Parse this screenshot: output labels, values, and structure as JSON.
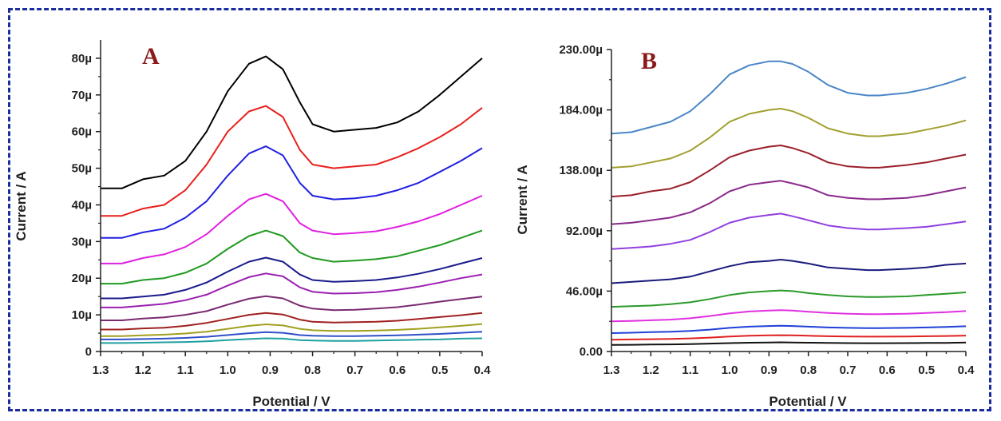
{
  "colors": {
    "frame": "#1a2d9c",
    "axis": "#222222",
    "panel_letter": "#8b1a1a"
  },
  "chart_data": [
    {
      "type": "line",
      "panel": "A",
      "xlabel": "Potential / V",
      "ylabel": "Current / A",
      "x_reversed": true,
      "xlim": [
        1.3,
        0.4
      ],
      "ylim": [
        0,
        85
      ],
      "x_ticks": [
        {
          "v": 1.3,
          "label": "1.3"
        },
        {
          "v": 1.2,
          "label": "1.2"
        },
        {
          "v": 1.1,
          "label": "1.1"
        },
        {
          "v": 1.0,
          "label": "1.0"
        },
        {
          "v": 0.9,
          "label": "0.9"
        },
        {
          "v": 0.8,
          "label": "0.8"
        },
        {
          "v": 0.7,
          "label": "0.7"
        },
        {
          "v": 0.6,
          "label": "0.6"
        },
        {
          "v": 0.5,
          "label": "0.5"
        },
        {
          "v": 0.4,
          "label": "0.4"
        }
      ],
      "y_ticks": [
        {
          "v": 0,
          "label": "0"
        },
        {
          "v": 10,
          "label": "10µ"
        },
        {
          "v": 20,
          "label": "20µ"
        },
        {
          "v": 30,
          "label": "30µ"
        },
        {
          "v": 40,
          "label": "40µ"
        },
        {
          "v": 50,
          "label": "50µ"
        },
        {
          "v": 60,
          "label": "60µ"
        },
        {
          "v": 70,
          "label": "70µ"
        },
        {
          "v": 80,
          "label": "80µ"
        }
      ],
      "x": [
        1.3,
        1.25,
        1.2,
        1.15,
        1.1,
        1.05,
        1.0,
        0.95,
        0.91,
        0.87,
        0.83,
        0.8,
        0.75,
        0.7,
        0.65,
        0.6,
        0.55,
        0.5,
        0.45,
        0.4
      ],
      "series": [
        {
          "color": "#000000",
          "values": [
            44.5,
            44.5,
            47,
            48,
            52,
            60,
            71,
            78.5,
            80.5,
            77,
            68,
            62,
            60,
            60.5,
            61,
            62.5,
            65.5,
            70,
            75,
            80
          ]
        },
        {
          "color": "#e8201c",
          "values": [
            37,
            37,
            39,
            40,
            44,
            51,
            60,
            65.5,
            67,
            64,
            55,
            51,
            50,
            50.5,
            51,
            53,
            55.5,
            58.5,
            62,
            66.5
          ]
        },
        {
          "color": "#2020e0",
          "values": [
            31,
            31,
            32.5,
            33.5,
            36.5,
            41,
            48,
            54,
            56,
            53.5,
            46,
            42.5,
            41.5,
            41.8,
            42.5,
            44,
            46,
            49,
            52,
            55.5
          ]
        },
        {
          "color": "#e020e0",
          "values": [
            24,
            24,
            25.5,
            26.5,
            28.5,
            32,
            37,
            41.5,
            43,
            41,
            35,
            33,
            32,
            32.3,
            32.8,
            34,
            35.5,
            37.5,
            40,
            42.5
          ]
        },
        {
          "color": "#1f9a1f",
          "values": [
            18.5,
            18.5,
            19.5,
            20,
            21.5,
            24,
            28,
            31.5,
            33,
            31.5,
            27,
            25.5,
            24.5,
            24.8,
            25.2,
            26,
            27.5,
            29,
            31,
            33
          ]
        },
        {
          "color": "#1a1a8c",
          "values": [
            14.5,
            14.5,
            15,
            15.5,
            16.8,
            18.8,
            21.8,
            24.5,
            25.6,
            24.5,
            21,
            19.5,
            19,
            19.2,
            19.5,
            20.2,
            21.2,
            22.5,
            24,
            25.5
          ]
        },
        {
          "color": "#9a1fb0",
          "values": [
            12,
            12,
            12.5,
            13,
            14,
            15.5,
            18,
            20.3,
            21.3,
            20.5,
            17.5,
            16.3,
            15.8,
            15.9,
            16.2,
            16.8,
            17.7,
            18.8,
            20,
            21
          ]
        },
        {
          "color": "#7a2a70",
          "values": [
            8.5,
            8.5,
            9,
            9.3,
            10,
            11,
            12.8,
            14.4,
            15.1,
            14.5,
            12.5,
            11.7,
            11.3,
            11.4,
            11.7,
            12.1,
            12.8,
            13.6,
            14.3,
            15
          ]
        },
        {
          "color": "#a02020",
          "values": [
            6,
            6,
            6.3,
            6.5,
            7,
            7.8,
            8.9,
            10,
            10.5,
            10.1,
            8.7,
            8.1,
            7.9,
            8,
            8.1,
            8.4,
            8.9,
            9.4,
            9.9,
            10.5
          ]
        },
        {
          "color": "#a0a020",
          "values": [
            4.2,
            4.2,
            4.4,
            4.6,
            4.9,
            5.4,
            6.2,
            7,
            7.4,
            7.1,
            6.2,
            5.8,
            5.6,
            5.6,
            5.7,
            5.9,
            6.2,
            6.6,
            7,
            7.5
          ]
        },
        {
          "color": "#3050c8",
          "values": [
            3.3,
            3.3,
            3.4,
            3.5,
            3.7,
            4.0,
            4.5,
            5.0,
            5.3,
            5.1,
            4.5,
            4.3,
            4.2,
            4.2,
            4.3,
            4.4,
            4.6,
            4.8,
            5.1,
            5.4
          ]
        },
        {
          "color": "#20a0a0",
          "values": [
            2.3,
            2.3,
            2.4,
            2.5,
            2.6,
            2.8,
            3.1,
            3.4,
            3.6,
            3.5,
            3.1,
            3.0,
            2.9,
            2.9,
            3.0,
            3.1,
            3.2,
            3.3,
            3.5,
            3.6
          ]
        }
      ]
    },
    {
      "type": "line",
      "panel": "B",
      "xlabel": "Potential / V",
      "ylabel": "Current / A",
      "x_reversed": true,
      "xlim": [
        1.3,
        0.4
      ],
      "ylim": [
        0,
        230
      ],
      "x_ticks": [
        {
          "v": 1.3,
          "label": "1.3"
        },
        {
          "v": 1.2,
          "label": "1.2"
        },
        {
          "v": 1.1,
          "label": "1.1"
        },
        {
          "v": 1.0,
          "label": "1.0"
        },
        {
          "v": 0.9,
          "label": "0.9"
        },
        {
          "v": 0.8,
          "label": "0.8"
        },
        {
          "v": 0.7,
          "label": "0.7"
        },
        {
          "v": 0.6,
          "label": "0.6"
        },
        {
          "v": 0.5,
          "label": "0.5"
        },
        {
          "v": 0.4,
          "label": "0.4"
        }
      ],
      "y_ticks": [
        {
          "v": 0,
          "label": "0.00"
        },
        {
          "v": 46,
          "label": "46.00µ"
        },
        {
          "v": 92,
          "label": "92.00µ"
        },
        {
          "v": 138,
          "label": "138.00µ"
        },
        {
          "v": 184,
          "label": "184.00µ"
        },
        {
          "v": 230,
          "label": "230.00µ"
        }
      ],
      "x": [
        1.3,
        1.25,
        1.2,
        1.15,
        1.1,
        1.05,
        1.0,
        0.95,
        0.9,
        0.87,
        0.84,
        0.8,
        0.75,
        0.7,
        0.65,
        0.62,
        0.55,
        0.5,
        0.45,
        0.4
      ],
      "series": [
        {
          "color": "#4a86c8",
          "values": [
            166,
            167,
            171,
            175,
            183,
            196,
            211,
            218,
            221,
            221,
            219,
            213,
            203,
            197,
            195,
            195,
            197,
            200,
            204,
            209
          ]
        },
        {
          "color": "#a0a030",
          "values": [
            140,
            141,
            144,
            147,
            153,
            163,
            175,
            181,
            184,
            185,
            183,
            178,
            170,
            166,
            164,
            164,
            166,
            169,
            172,
            176
          ]
        },
        {
          "color": "#9a1f2a",
          "values": [
            118,
            119,
            122,
            124,
            129,
            138,
            148,
            153,
            156,
            157,
            155,
            151,
            144,
            141,
            140,
            140,
            142,
            144,
            147,
            150
          ]
        },
        {
          "color": "#8a2a8c",
          "values": [
            97,
            98,
            100,
            102,
            106,
            113,
            122,
            127,
            129,
            130,
            128,
            125,
            119,
            117,
            116,
            116,
            117,
            119,
            122,
            125
          ]
        },
        {
          "color": "#9040e0",
          "values": [
            78,
            79,
            80,
            82,
            85,
            91,
            98,
            102,
            104,
            105,
            103,
            100,
            96,
            94,
            93,
            93,
            94,
            95,
            97,
            99
          ]
        },
        {
          "color": "#1a1a7c",
          "values": [
            52,
            53,
            54,
            55,
            57,
            61,
            65,
            68,
            69,
            70,
            69,
            67,
            64,
            63,
            62,
            62,
            63,
            64,
            66,
            67
          ]
        },
        {
          "color": "#2a9a2a",
          "values": [
            34,
            34.5,
            35,
            36,
            37.5,
            40,
            43,
            45,
            46,
            46.5,
            46,
            44.5,
            43,
            42,
            41.5,
            41.5,
            42,
            43,
            44,
            45
          ]
        },
        {
          "color": "#e030e0",
          "values": [
            23,
            23.3,
            23.8,
            24.3,
            25.3,
            27,
            29,
            30.5,
            31.2,
            31.5,
            31.2,
            30.3,
            29.3,
            28.8,
            28.5,
            28.5,
            28.8,
            29.3,
            30,
            30.8
          ]
        },
        {
          "color": "#2040d8",
          "values": [
            14,
            14.3,
            14.7,
            15,
            15.7,
            16.7,
            18,
            18.9,
            19.4,
            19.6,
            19.4,
            18.9,
            18.3,
            18,
            17.8,
            17.8,
            18,
            18.3,
            18.7,
            19.2
          ]
        },
        {
          "color": "#e02020",
          "values": [
            9,
            9.2,
            9.4,
            9.6,
            10,
            10.6,
            11.4,
            12,
            12.3,
            12.4,
            12.3,
            12,
            11.6,
            11.4,
            11.3,
            11.3,
            11.4,
            11.6,
            11.8,
            12.1
          ]
        },
        {
          "color": "#111111",
          "values": [
            5,
            5.1,
            5.3,
            5.4,
            5.6,
            6,
            6.4,
            6.7,
            6.9,
            7,
            6.9,
            6.7,
            6.5,
            6.4,
            6.3,
            6.3,
            6.4,
            6.5,
            6.6,
            6.8
          ]
        }
      ]
    }
  ]
}
